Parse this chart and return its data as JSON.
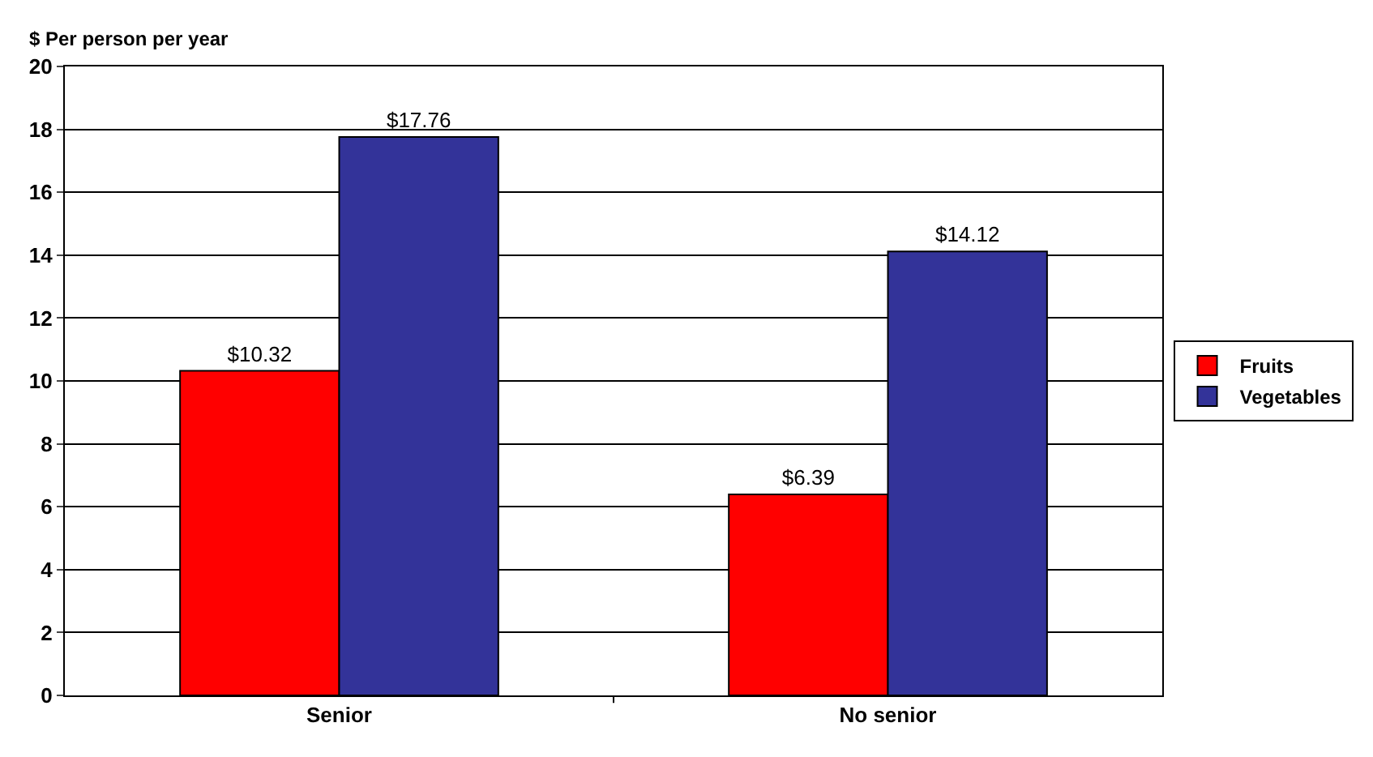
{
  "chart_data": {
    "type": "bar",
    "ylabel": "$ Per person per year",
    "categories": [
      "Senior",
      "No senior"
    ],
    "series": [
      {
        "name": "Fruits",
        "color": "#ff0000",
        "values": [
          10.32,
          6.39
        ],
        "value_labels": [
          "$10.32",
          "$6.39"
        ]
      },
      {
        "name": "Vegetables",
        "color": "#333399",
        "values": [
          17.76,
          14.12
        ],
        "value_labels": [
          "$17.76",
          "$14.12"
        ]
      }
    ],
    "ylim": [
      0,
      20
    ],
    "yticks": [
      0,
      2,
      4,
      6,
      8,
      10,
      12,
      14,
      16,
      18,
      20
    ],
    "grid": "y",
    "legend": "right"
  }
}
